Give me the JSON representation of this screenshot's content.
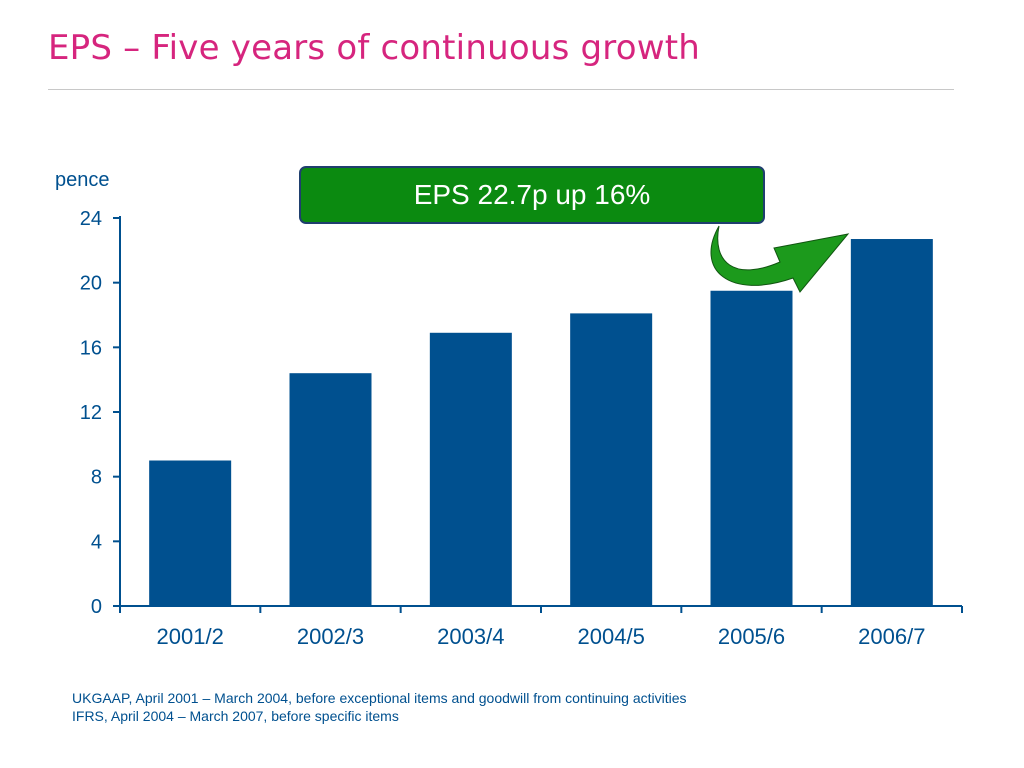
{
  "slide": {
    "title": "EPS – Five years of continuous growth"
  },
  "callout": {
    "text": "EPS 22.7p up 16%"
  },
  "colors": {
    "title": "#d6257e",
    "bar": "#00508f",
    "axis": "#00508f",
    "callout_fill": "#0b8a10",
    "arrow": "#1c9a1c",
    "footnote": "#00508f"
  },
  "chart_data": {
    "type": "bar",
    "title": "",
    "xlabel": "",
    "ylabel": "pence",
    "categories": [
      "2001/2",
      "2002/3",
      "2003/4",
      "2004/5",
      "2005/6",
      "2006/7"
    ],
    "values": [
      9.0,
      14.4,
      16.9,
      18.1,
      19.5,
      22.7
    ],
    "ylim": [
      0,
      24
    ],
    "yticks": [
      "0",
      "4",
      "8",
      "12",
      "16",
      "20",
      "24"
    ],
    "grid": false,
    "legend": "none"
  },
  "footnotes": [
    "UKGAAP, April 2001 – March 2004, before exceptional items and goodwill from continuing activities",
    "IFRS, April 2004 – March 2007, before specific items"
  ]
}
